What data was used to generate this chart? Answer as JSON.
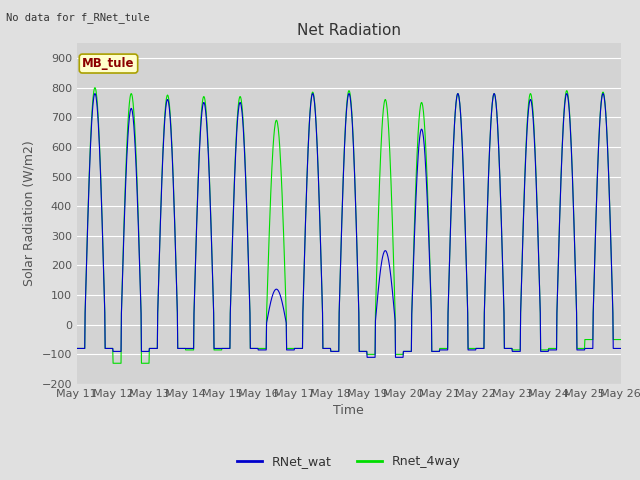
{
  "title": "Net Radiation",
  "xlabel": "Time",
  "ylabel": "Solar Radiation (W/m2)",
  "annotation_text": "No data for f_RNet_tule",
  "box_label": "MB_tule",
  "ylim": [
    -200,
    950
  ],
  "yticks": [
    -200,
    -100,
    0,
    100,
    200,
    300,
    400,
    500,
    600,
    700,
    800,
    900
  ],
  "legend_labels": [
    "RNet_wat",
    "Rnet_4way"
  ],
  "line_colors": [
    "#0000cc",
    "#00dd00"
  ],
  "background_color": "#e0e0e0",
  "plot_bg_color": "#d3d3d3",
  "grid_color": "#ffffff",
  "n_days": 15,
  "day_start": 11,
  "title_fontsize": 11,
  "label_fontsize": 9,
  "tick_fontsize": 8,
  "day_peaks_blue": [
    780,
    730,
    760,
    750,
    750,
    120,
    780,
    780,
    250,
    660,
    780,
    780,
    760,
    780,
    780
  ],
  "day_peaks_green": [
    800,
    780,
    775,
    770,
    770,
    690,
    785,
    790,
    760,
    750,
    780,
    780,
    780,
    790,
    785
  ],
  "night_vals_blue": [
    -80,
    -90,
    -80,
    -80,
    -80,
    -85,
    -80,
    -90,
    -110,
    -90,
    -85,
    -80,
    -90,
    -85,
    -80
  ],
  "night_vals_green": [
    -80,
    -130,
    -80,
    -85,
    -80,
    -80,
    -80,
    -90,
    -100,
    -90,
    -80,
    -80,
    -85,
    -80,
    -50
  ]
}
